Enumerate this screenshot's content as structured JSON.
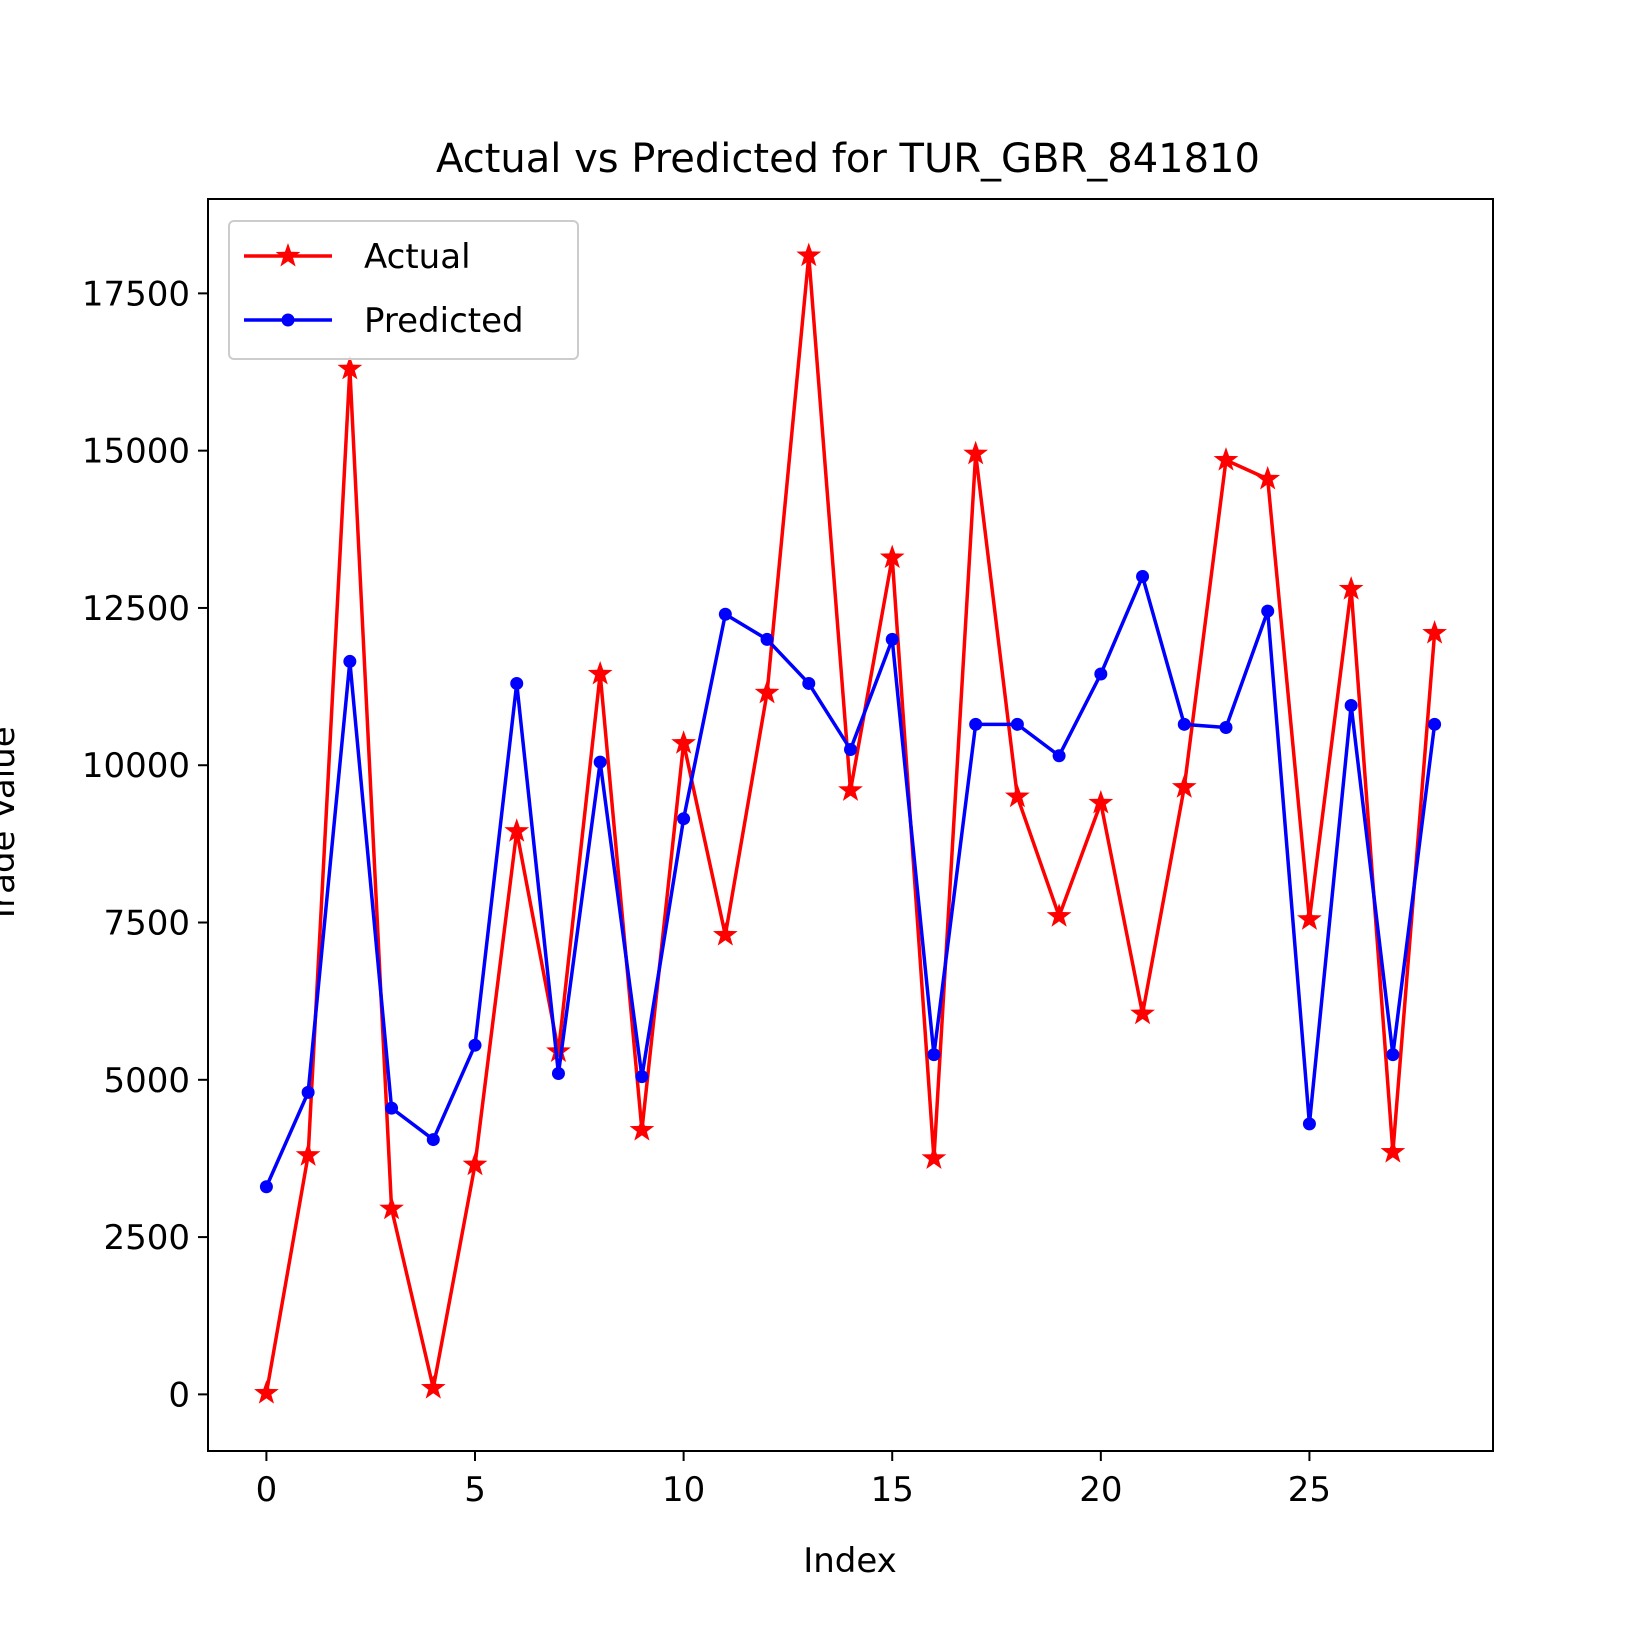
{
  "chart_data": {
    "type": "line",
    "title": "Actual vs Predicted for TUR_GBR_841810",
    "xlabel": "Index",
    "ylabel": "Trade Value",
    "xlim": [
      -1.4,
      29.4
    ],
    "ylim": [
      -900,
      19000
    ],
    "xticks": [
      0,
      5,
      10,
      15,
      20,
      25
    ],
    "yticks": [
      0,
      2500,
      5000,
      7500,
      10000,
      12500,
      15000,
      17500
    ],
    "grid": false,
    "legend": "top-left",
    "x": [
      0,
      1,
      2,
      3,
      4,
      5,
      6,
      7,
      8,
      9,
      10,
      11,
      12,
      13,
      14,
      15,
      16,
      17,
      18,
      19,
      20,
      21,
      22,
      23,
      24,
      25,
      26,
      27,
      28
    ],
    "series": [
      {
        "name": "Actual",
        "color": "#ff0000",
        "marker": "star",
        "values": [
          20,
          3800,
          16300,
          2950,
          100,
          3650,
          8950,
          5450,
          11450,
          4200,
          10350,
          7300,
          11150,
          18100,
          9600,
          13300,
          3750,
          14950,
          9500,
          7600,
          9400,
          6050,
          9650,
          14850,
          14550,
          7550,
          12800,
          3850,
          12100
        ]
      },
      {
        "name": "Predicted",
        "color": "#0000ff",
        "marker": "dot",
        "values": [
          3300,
          4800,
          11650,
          4550,
          4050,
          5550,
          11300,
          5100,
          10050,
          5050,
          9150,
          12400,
          12000,
          11300,
          10250,
          12000,
          5400,
          10650,
          10650,
          10150,
          11450,
          13000,
          10650,
          10600,
          12450,
          4300,
          10950,
          5400,
          10650
        ]
      }
    ]
  }
}
